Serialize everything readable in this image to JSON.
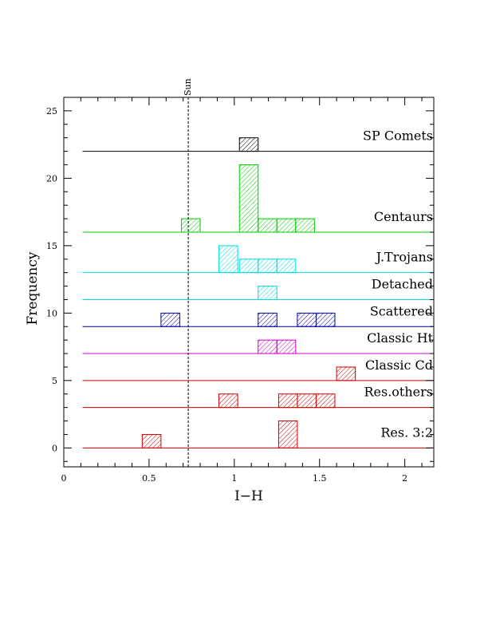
{
  "chart_data": {
    "type": "bar",
    "title": "",
    "xlabel": "I−H",
    "ylabel": "Frequency",
    "xlim": [
      0,
      2.17
    ],
    "ylim": [
      -1.4,
      26
    ],
    "bin_width": 0.11,
    "x_ticks": [
      {
        "value": 0,
        "label": "0"
      },
      {
        "value": 0.5,
        "label": "0.5"
      },
      {
        "value": 1,
        "label": "1"
      },
      {
        "value": 1.5,
        "label": "1.5"
      },
      {
        "value": 2,
        "label": "2"
      }
    ],
    "y_ticks": [
      {
        "value": 0,
        "label": "0"
      },
      {
        "value": 5,
        "label": "5"
      },
      {
        "value": 10,
        "label": "10"
      },
      {
        "value": 15,
        "label": "15"
      },
      {
        "value": 20,
        "label": "20"
      },
      {
        "value": 25,
        "label": "25"
      }
    ],
    "reference_line": {
      "x": 0.73,
      "label": "Sun"
    },
    "series": [
      {
        "name": "SP Comets",
        "baseline": 22,
        "color": "#000000",
        "bins": [
          {
            "x0": 1.03,
            "count": 1
          }
        ]
      },
      {
        "name": "Centaurs",
        "baseline": 16,
        "color": "#00cc00",
        "bins": [
          {
            "x0": 0.69,
            "count": 1
          },
          {
            "x0": 1.03,
            "count": 5
          },
          {
            "x0": 1.14,
            "count": 1
          },
          {
            "x0": 1.25,
            "count": 1
          },
          {
            "x0": 1.36,
            "count": 1
          }
        ]
      },
      {
        "name": "J.Trojans",
        "baseline": 13,
        "color": "#00dddd",
        "bins": [
          {
            "x0": 0.91,
            "count": 2
          },
          {
            "x0": 1.03,
            "count": 1
          },
          {
            "x0": 1.14,
            "count": 1
          },
          {
            "x0": 1.25,
            "count": 1
          }
        ]
      },
      {
        "name": "Detached",
        "baseline": 11,
        "color": "#00dddd",
        "bins": [
          {
            "x0": 1.14,
            "count": 1
          }
        ]
      },
      {
        "name": "Scattered",
        "baseline": 9,
        "color": "#0000aa",
        "bins": [
          {
            "x0": 0.57,
            "count": 1
          },
          {
            "x0": 1.14,
            "count": 1
          },
          {
            "x0": 1.37,
            "count": 1
          },
          {
            "x0": 1.48,
            "count": 1
          }
        ]
      },
      {
        "name": "Classic Ht",
        "baseline": 7,
        "color": "#cc00cc",
        "bins": [
          {
            "x0": 1.14,
            "count": 1
          },
          {
            "x0": 1.25,
            "count": 1
          }
        ]
      },
      {
        "name": "Classic Cd",
        "baseline": 5,
        "color": "#cc0000",
        "bins": [
          {
            "x0": 1.6,
            "count": 1
          }
        ]
      },
      {
        "name": "Res.others",
        "baseline": 3,
        "color": "#cc0000",
        "bins": [
          {
            "x0": 0.91,
            "count": 1
          },
          {
            "x0": 1.26,
            "count": 1
          },
          {
            "x0": 1.37,
            "count": 1
          },
          {
            "x0": 1.48,
            "count": 1
          }
        ]
      },
      {
        "name": "Res. 3:2",
        "baseline": 0,
        "color": "#cc0000",
        "bins": [
          {
            "x0": 0.46,
            "count": 1
          },
          {
            "x0": 1.26,
            "count": 2
          }
        ]
      }
    ]
  }
}
